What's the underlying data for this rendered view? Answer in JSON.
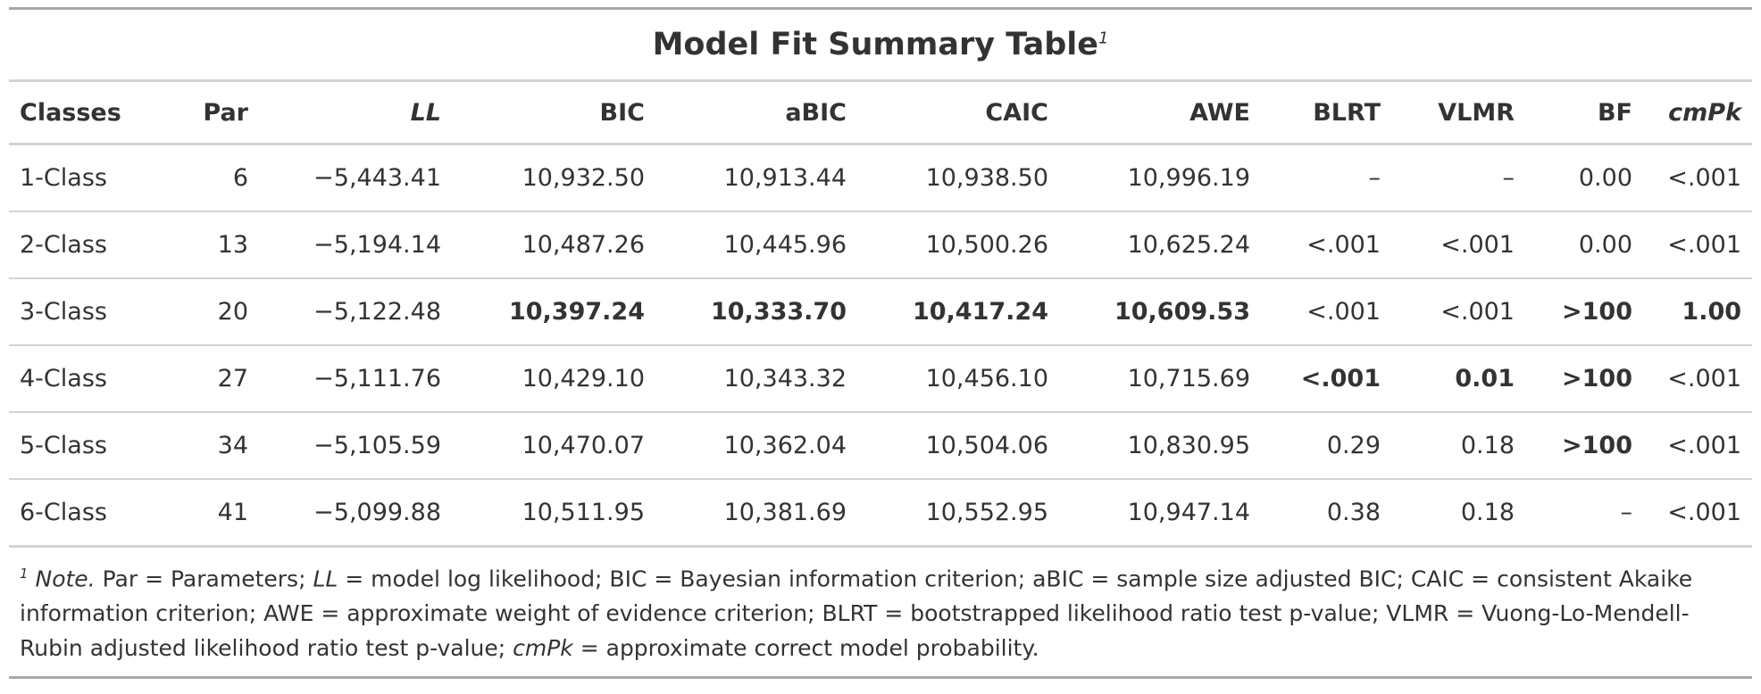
{
  "title": "Model Fit Summary Table",
  "title_footnote_marker": "1",
  "columns": [
    "Classes",
    "Par",
    "LL",
    "BIC",
    "aBIC",
    "CAIC",
    "AWE",
    "BLRT",
    "VLMR",
    "BF",
    "cmPk"
  ],
  "rows": [
    {
      "cells": [
        "1-Class",
        "6",
        "−5,443.41",
        "10,932.50",
        "10,913.44",
        "10,938.50",
        "10,996.19",
        "–",
        "–",
        "0.00",
        "<.001"
      ],
      "bold": [
        false,
        false,
        false,
        false,
        false,
        false,
        false,
        false,
        false,
        false,
        false
      ]
    },
    {
      "cells": [
        "2-Class",
        "13",
        "−5,194.14",
        "10,487.26",
        "10,445.96",
        "10,500.26",
        "10,625.24",
        "<.001",
        "<.001",
        "0.00",
        "<.001"
      ],
      "bold": [
        false,
        false,
        false,
        false,
        false,
        false,
        false,
        false,
        false,
        false,
        false
      ]
    },
    {
      "cells": [
        "3-Class",
        "20",
        "−5,122.48",
        "10,397.24",
        "10,333.70",
        "10,417.24",
        "10,609.53",
        "<.001",
        "<.001",
        ">100",
        "1.00"
      ],
      "bold": [
        false,
        false,
        false,
        true,
        true,
        true,
        true,
        false,
        false,
        true,
        true
      ]
    },
    {
      "cells": [
        "4-Class",
        "27",
        "−5,111.76",
        "10,429.10",
        "10,343.32",
        "10,456.10",
        "10,715.69",
        "<.001",
        "0.01",
        ">100",
        "<.001"
      ],
      "bold": [
        false,
        false,
        false,
        false,
        false,
        false,
        false,
        true,
        true,
        true,
        false
      ]
    },
    {
      "cells": [
        "5-Class",
        "34",
        "−5,105.59",
        "10,470.07",
        "10,362.04",
        "10,504.06",
        "10,830.95",
        "0.29",
        "0.18",
        ">100",
        "<.001"
      ],
      "bold": [
        false,
        false,
        false,
        false,
        false,
        false,
        false,
        false,
        false,
        true,
        false
      ]
    },
    {
      "cells": [
        "6-Class",
        "41",
        "−5,099.88",
        "10,511.95",
        "10,381.69",
        "10,552.95",
        "10,947.14",
        "0.38",
        "0.18",
        "–",
        "<.001"
      ],
      "bold": [
        false,
        false,
        false,
        false,
        false,
        false,
        false,
        false,
        false,
        false,
        false
      ]
    }
  ],
  "footnote": {
    "marker": "1",
    "note_label": "Note.",
    "part1": " Par = Parameters; ",
    "ll": "LL",
    "part2": " = model log likelihood; BIC = Bayesian information criterion; aBIC = sample size adjusted BIC; CAIC = consistent Akaike information criterion; AWE = approximate weight of evidence criterion; BLRT = bootstrapped likelihood ratio test p-value; VLMR = Vuong-Lo-Mendell-Rubin adjusted likelihood ratio test p-value; ",
    "cmpk": "cmPk",
    "part3": " = approximate correct model probability."
  }
}
